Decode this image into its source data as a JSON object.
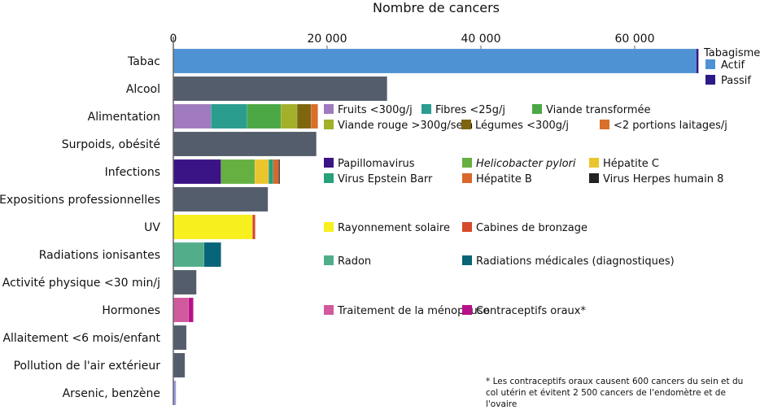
{
  "chart_data": {
    "type": "bar",
    "orientation": "horizontal",
    "stacked": true,
    "title": "Nombre de cancers",
    "xlim": [
      0,
      70000
    ],
    "xticks": [
      0,
      20000,
      40000,
      60000
    ],
    "xtick_labels": [
      "0",
      "20 000",
      "40 000",
      "60 000"
    ],
    "grid": false,
    "categories": [
      {
        "label": "Tabac",
        "legend_title": "Tabagisme",
        "segments": [
          {
            "name": "Actif",
            "value": 68000,
            "color": "#4f92d4"
          },
          {
            "name": "Passif",
            "value": 300,
            "color": "#2e1a87"
          }
        ]
      },
      {
        "label": "Alcool",
        "segments": [
          {
            "name": "",
            "value": 27800,
            "color": "#545d6b"
          }
        ]
      },
      {
        "label": "Alimentation",
        "segments": [
          {
            "name": "Fruits <300g/j",
            "value": 4900,
            "color": "#a07bbf"
          },
          {
            "name": "Fibres <25g/j",
            "value": 4700,
            "color": "#2a9d8f"
          },
          {
            "name": "Viande transformée",
            "value": 4400,
            "color": "#4ca845"
          },
          {
            "name": "Viande rouge >300g/sem",
            "value": 2100,
            "color": "#a2b02a"
          },
          {
            "name": "Légumes <300g/j",
            "value": 1800,
            "color": "#7e650f"
          },
          {
            "name": "<2 portions laitages/j",
            "value": 900,
            "color": "#d96f2b"
          }
        ]
      },
      {
        "label": "Surpoids, obésité",
        "segments": [
          {
            "name": "",
            "value": 18600,
            "color": "#545d6b"
          }
        ]
      },
      {
        "label": "Infections",
        "segments": [
          {
            "name": "Papillomavirus",
            "value": 6200,
            "color": "#3a1385"
          },
          {
            "name": "Helicobacter pylori",
            "value": 4400,
            "color": "#66b042",
            "italic": true
          },
          {
            "name": "Hépatite C",
            "value": 1800,
            "color": "#ebc52e"
          },
          {
            "name": "Virus Epstein Barr",
            "value": 600,
            "color": "#27a07c"
          },
          {
            "name": "Hépatite B",
            "value": 700,
            "color": "#d9662a"
          },
          {
            "name": "Virus Herpes humain 8",
            "value": 150,
            "color": "#222222"
          }
        ]
      },
      {
        "label": "Expositions professionnelles",
        "segments": [
          {
            "name": "",
            "value": 12300,
            "color": "#545d6b"
          }
        ]
      },
      {
        "label": "UV",
        "segments": [
          {
            "name": "Rayonnement solaire",
            "value": 10300,
            "color": "#f8ef1e"
          },
          {
            "name": "Cabines de bronzage",
            "value": 350,
            "color": "#d6482a"
          }
        ]
      },
      {
        "label": "Radiations ionisantes",
        "segments": [
          {
            "name": "Radon",
            "value": 4000,
            "color": "#52ae8a"
          },
          {
            "name": "Radiations médicales (diagnostiques)",
            "value": 2200,
            "color": "#086478"
          }
        ]
      },
      {
        "label": "Activité physique <30 min/j",
        "segments": [
          {
            "name": "",
            "value": 3000,
            "color": "#545d6b"
          }
        ]
      },
      {
        "label": "Hormones",
        "segments": [
          {
            "name": "Traitement de la ménopause",
            "value": 2000,
            "color": "#d05a9c"
          },
          {
            "name": "Contraceptifs oraux*",
            "value": 600,
            "color": "#b8108a"
          }
        ]
      },
      {
        "label": "Allaitement <6 mois/enfant",
        "segments": [
          {
            "name": "",
            "value": 1700,
            "color": "#545d6b"
          }
        ]
      },
      {
        "label": "Pollution de l'air extérieur",
        "segments": [
          {
            "name": "",
            "value": 1500,
            "color": "#545d6b"
          }
        ]
      },
      {
        "label": "Arsenic, benzène",
        "segments": [
          {
            "name": "",
            "value": 350,
            "color": "#9b9be0"
          }
        ]
      }
    ],
    "footnote": [
      "* Les contraceptifs oraux causent 600 cancers du sein et du",
      "col utérin et évitent 2 500 cancers de l'endomètre et de",
      "l'ovaire"
    ]
  }
}
